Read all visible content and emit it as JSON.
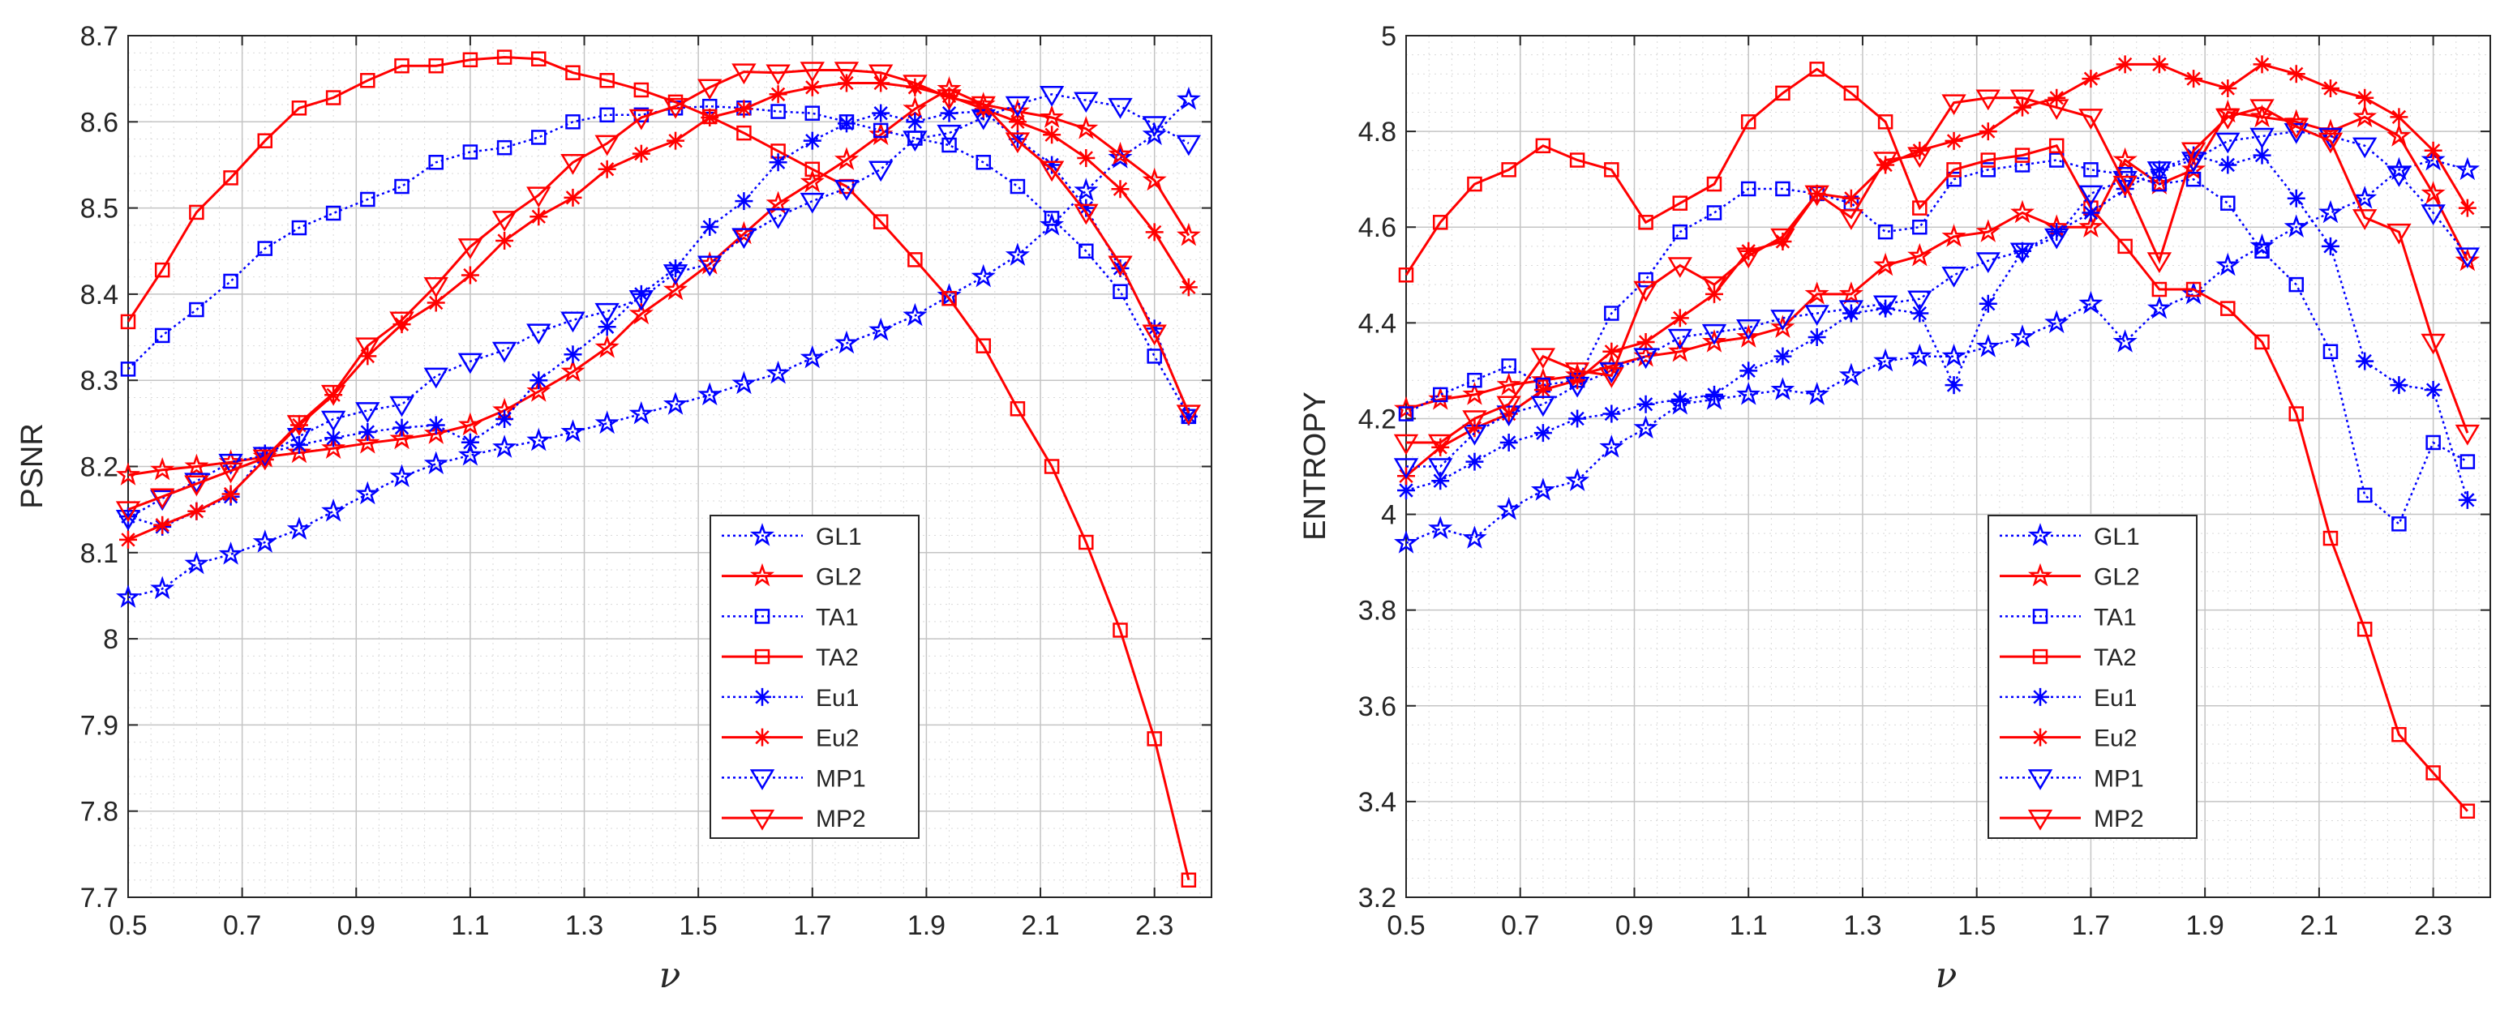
{
  "figure": {
    "domain": "Chart"
  },
  "chart_data": [
    {
      "type": "line",
      "title": "",
      "xlabel": "ν",
      "ylabel": "PSNR",
      "xlim": [
        0.5,
        2.4
      ],
      "ylim": [
        7.7,
        8.7
      ],
      "xticks": [
        0.5,
        0.7,
        0.9,
        1.1,
        1.3,
        1.5,
        1.7,
        1.9,
        2.1,
        2.3
      ],
      "xtick_labels": [
        "0.5",
        "0.7",
        "0.9",
        "1.1",
        "1.3",
        "1.5",
        "1.7",
        "1.9",
        "2.1",
        "2.3"
      ],
      "yticks": [
        7.7,
        7.8,
        7.9,
        8.0,
        8.1,
        8.2,
        8.3,
        8.4,
        8.5,
        8.6,
        8.7
      ],
      "ytick_labels": [
        "7.7",
        "7.8",
        "7.9",
        "8",
        "8.1",
        "8.2",
        "8.3",
        "8.4",
        "8.5",
        "8.6",
        "8.7"
      ],
      "grid": "on (major and minor)",
      "legend_position": "lower-right",
      "x": [
        0.5,
        0.56,
        0.62,
        0.68,
        0.74,
        0.8,
        0.86,
        0.92,
        0.98,
        1.04,
        1.1,
        1.16,
        1.22,
        1.28,
        1.34,
        1.4,
        1.46,
        1.52,
        1.58,
        1.64,
        1.7,
        1.76,
        1.82,
        1.88,
        1.94,
        2.0,
        2.06,
        2.12,
        2.18,
        2.24,
        2.3,
        2.36
      ],
      "series": [
        {
          "name": "GL1",
          "color": "#0000ff",
          "line": "dotted",
          "marker": "pentagram",
          "values": [
            8.048,
            8.058,
            8.087,
            8.098,
            8.112,
            8.127,
            8.148,
            8.168,
            8.188,
            8.203,
            8.213,
            8.222,
            8.23,
            8.24,
            8.25,
            8.261,
            8.272,
            8.283,
            8.296,
            8.308,
            8.326,
            8.343,
            8.358,
            8.375,
            8.398,
            8.42,
            8.445,
            8.48,
            8.52,
            8.558,
            8.585,
            8.626
          ]
        },
        {
          "name": "GL2",
          "color": "#ff0000",
          "line": "solid",
          "marker": "pentagram",
          "values": [
            8.19,
            8.196,
            8.2,
            8.205,
            8.211,
            8.216,
            8.221,
            8.227,
            8.232,
            8.238,
            8.248,
            8.265,
            8.287,
            8.31,
            8.338,
            8.377,
            8.405,
            8.435,
            8.47,
            8.505,
            8.53,
            8.556,
            8.585,
            8.615,
            8.638,
            8.62,
            8.612,
            8.605,
            8.592,
            8.562,
            8.532,
            8.468
          ]
        },
        {
          "name": "TA1",
          "color": "#0000ff",
          "line": "dotted",
          "marker": "square",
          "values": [
            8.313,
            8.352,
            8.382,
            8.415,
            8.453,
            8.477,
            8.494,
            8.51,
            8.525,
            8.553,
            8.565,
            8.57,
            8.582,
            8.6,
            8.608,
            8.608,
            8.616,
            8.618,
            8.616,
            8.612,
            8.61,
            8.6,
            8.59,
            8.581,
            8.573,
            8.553,
            8.525,
            8.488,
            8.45,
            8.403,
            8.328,
            8.258
          ]
        },
        {
          "name": "TA2",
          "color": "#ff0000",
          "line": "solid",
          "marker": "square",
          "values": [
            8.368,
            8.428,
            8.495,
            8.535,
            8.578,
            8.616,
            8.628,
            8.648,
            8.665,
            8.665,
            8.672,
            8.675,
            8.673,
            8.657,
            8.648,
            8.637,
            8.623,
            8.606,
            8.587,
            8.566,
            8.545,
            8.525,
            8.484,
            8.44,
            8.395,
            8.34,
            8.267,
            8.2,
            8.112,
            8.01,
            7.884,
            7.72
          ]
        },
        {
          "name": "Eu1",
          "color": "#0000ff",
          "line": "dotted",
          "marker": "asterisk",
          "values": [
            8.142,
            8.13,
            8.148,
            8.165,
            8.215,
            8.225,
            8.233,
            8.24,
            8.245,
            8.248,
            8.228,
            8.255,
            8.3,
            8.33,
            8.362,
            8.4,
            8.43,
            8.478,
            8.508,
            8.553,
            8.578,
            8.598,
            8.61,
            8.6,
            8.61,
            8.612,
            8.58,
            8.55,
            8.5,
            8.43,
            8.36,
            8.258
          ]
        },
        {
          "name": "Eu2",
          "color": "#ff0000",
          "line": "solid",
          "marker": "asterisk",
          "values": [
            8.115,
            8.132,
            8.148,
            8.168,
            8.208,
            8.248,
            8.283,
            8.328,
            8.365,
            8.39,
            8.422,
            8.462,
            8.49,
            8.512,
            8.545,
            8.563,
            8.578,
            8.605,
            8.615,
            8.632,
            8.64,
            8.645,
            8.645,
            8.64,
            8.63,
            8.615,
            8.6,
            8.585,
            8.558,
            8.522,
            8.472,
            8.408
          ]
        },
        {
          "name": "MP1",
          "color": "#0000ff",
          "line": "dotted",
          "marker": "triangle-down",
          "values": [
            8.14,
            8.163,
            8.183,
            8.205,
            8.213,
            8.235,
            8.255,
            8.265,
            8.272,
            8.305,
            8.322,
            8.335,
            8.356,
            8.37,
            8.38,
            8.395,
            8.425,
            8.435,
            8.467,
            8.49,
            8.508,
            8.523,
            8.545,
            8.58,
            8.587,
            8.605,
            8.62,
            8.632,
            8.625,
            8.618,
            8.597,
            8.575
          ]
        },
        {
          "name": "MP2",
          "color": "#ff0000",
          "line": "solid",
          "marker": "triangle-down",
          "values": [
            8.15,
            8.165,
            8.18,
            8.195,
            8.21,
            8.25,
            8.285,
            8.34,
            8.37,
            8.41,
            8.455,
            8.487,
            8.515,
            8.553,
            8.575,
            8.605,
            8.618,
            8.64,
            8.658,
            8.657,
            8.66,
            8.66,
            8.657,
            8.645,
            8.628,
            8.62,
            8.578,
            8.545,
            8.495,
            8.435,
            8.355,
            8.262
          ]
        }
      ]
    },
    {
      "type": "line",
      "title": "",
      "xlabel": "ν",
      "ylabel": "ENTROPY",
      "xlim": [
        0.5,
        2.4
      ],
      "ylim": [
        3.2,
        5.0
      ],
      "xticks": [
        0.5,
        0.7,
        0.9,
        1.1,
        1.3,
        1.5,
        1.7,
        1.9,
        2.1,
        2.3
      ],
      "xtick_labels": [
        "0.5",
        "0.7",
        "0.9",
        "1.1",
        "1.3",
        "1.5",
        "1.7",
        "1.9",
        "2.1",
        "2.3"
      ],
      "yticks": [
        3.2,
        3.4,
        3.6,
        3.8,
        4.0,
        4.2,
        4.4,
        4.6,
        4.8,
        5.0
      ],
      "ytick_labels": [
        "3.2",
        "3.4",
        "3.6",
        "3.8",
        "4",
        "4.2",
        "4.4",
        "4.6",
        "4.8",
        "5"
      ],
      "grid": "on (major and minor)",
      "legend_position": "lower-middle",
      "x": [
        0.5,
        0.56,
        0.62,
        0.68,
        0.74,
        0.8,
        0.86,
        0.92,
        0.98,
        1.04,
        1.1,
        1.16,
        1.22,
        1.28,
        1.34,
        1.4,
        1.46,
        1.52,
        1.58,
        1.64,
        1.7,
        1.76,
        1.82,
        1.88,
        1.94,
        2.0,
        2.06,
        2.12,
        2.18,
        2.24,
        2.3,
        2.36
      ],
      "series": [
        {
          "name": "GL1",
          "color": "#0000ff",
          "line": "dotted",
          "marker": "pentagram",
          "values": [
            3.94,
            3.97,
            3.95,
            4.01,
            4.05,
            4.07,
            4.14,
            4.18,
            4.23,
            4.24,
            4.25,
            4.26,
            4.25,
            4.29,
            4.32,
            4.33,
            4.33,
            4.35,
            4.37,
            4.4,
            4.44,
            4.36,
            4.43,
            4.46,
            4.52,
            4.56,
            4.6,
            4.63,
            4.66,
            4.72,
            4.74,
            4.72
          ]
        },
        {
          "name": "GL2",
          "color": "#ff0000",
          "line": "solid",
          "marker": "pentagram",
          "values": [
            4.22,
            4.24,
            4.25,
            4.27,
            4.28,
            4.29,
            4.31,
            4.33,
            4.34,
            4.36,
            4.37,
            4.39,
            4.46,
            4.46,
            4.52,
            4.54,
            4.58,
            4.59,
            4.63,
            4.6,
            4.6,
            4.74,
            4.69,
            4.72,
            4.84,
            4.83,
            4.82,
            4.8,
            4.83,
            4.79,
            4.67,
            4.53
          ]
        },
        {
          "name": "TA1",
          "color": "#0000ff",
          "line": "dotted",
          "marker": "square",
          "values": [
            4.21,
            4.25,
            4.28,
            4.31,
            4.27,
            4.28,
            4.42,
            4.49,
            4.59,
            4.63,
            4.68,
            4.68,
            4.67,
            4.65,
            4.59,
            4.6,
            4.7,
            4.72,
            4.73,
            4.74,
            4.72,
            4.71,
            4.69,
            4.7,
            4.65,
            4.55,
            4.48,
            4.34,
            4.04,
            3.98,
            4.15,
            4.11
          ]
        },
        {
          "name": "TA2",
          "color": "#ff0000",
          "line": "solid",
          "marker": "square",
          "values": [
            4.5,
            4.61,
            4.69,
            4.72,
            4.77,
            4.74,
            4.72,
            4.61,
            4.65,
            4.69,
            4.82,
            4.88,
            4.93,
            4.88,
            4.82,
            4.64,
            4.72,
            4.74,
            4.75,
            4.77,
            4.64,
            4.56,
            4.47,
            4.47,
            4.43,
            4.36,
            4.21,
            3.95,
            3.76,
            3.54,
            3.46,
            3.38
          ]
        },
        {
          "name": "Eu1",
          "color": "#0000ff",
          "line": "dotted",
          "marker": "asterisk",
          "values": [
            4.05,
            4.07,
            4.11,
            4.15,
            4.17,
            4.2,
            4.21,
            4.23,
            4.24,
            4.25,
            4.3,
            4.33,
            4.37,
            4.42,
            4.43,
            4.42,
            4.27,
            4.44,
            4.55,
            4.59,
            4.63,
            4.68,
            4.72,
            4.75,
            4.73,
            4.75,
            4.66,
            4.56,
            4.32,
            4.27,
            4.26,
            4.03
          ]
        },
        {
          "name": "Eu2",
          "color": "#ff0000",
          "line": "solid",
          "marker": "asterisk",
          "values": [
            4.08,
            4.14,
            4.18,
            4.21,
            4.26,
            4.28,
            4.34,
            4.36,
            4.41,
            4.46,
            4.55,
            4.57,
            4.67,
            4.66,
            4.73,
            4.76,
            4.78,
            4.8,
            4.85,
            4.87,
            4.91,
            4.94,
            4.94,
            4.91,
            4.89,
            4.94,
            4.92,
            4.89,
            4.87,
            4.83,
            4.76,
            4.64
          ]
        },
        {
          "name": "MP1",
          "color": "#0000ff",
          "line": "dotted",
          "marker": "triangle-down",
          "values": [
            4.1,
            4.1,
            4.17,
            4.21,
            4.23,
            4.27,
            4.3,
            4.33,
            4.37,
            4.38,
            4.39,
            4.41,
            4.42,
            4.43,
            4.44,
            4.45,
            4.5,
            4.53,
            4.55,
            4.58,
            4.67,
            4.7,
            4.72,
            4.74,
            4.78,
            4.79,
            4.8,
            4.79,
            4.77,
            4.71,
            4.63,
            4.54
          ]
        },
        {
          "name": "MP2",
          "color": "#ff0000",
          "line": "solid",
          "marker": "triangle-down",
          "values": [
            4.15,
            4.15,
            4.2,
            4.23,
            4.33,
            4.3,
            4.29,
            4.47,
            4.52,
            4.48,
            4.54,
            4.58,
            4.67,
            4.62,
            4.74,
            4.75,
            4.86,
            4.87,
            4.87,
            4.85,
            4.83,
            4.69,
            4.53,
            4.76,
            4.83,
            4.85,
            4.81,
            4.78,
            4.62,
            4.59,
            4.36,
            4.17
          ]
        }
      ]
    }
  ]
}
